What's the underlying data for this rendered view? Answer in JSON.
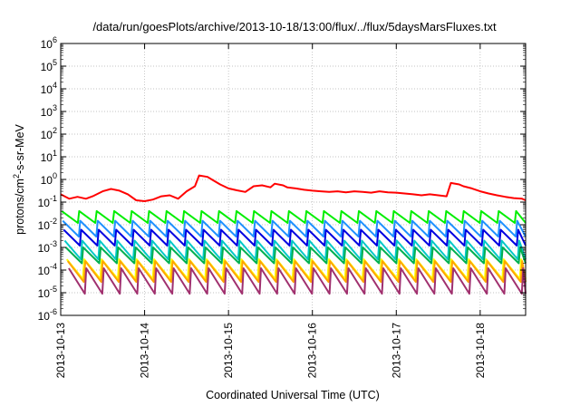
{
  "chart_data": {
    "type": "line",
    "title": "/data/run/goesPlots/archive/2013-10-18/13:00/flux/../flux/5daysMarsFluxes.txt",
    "xlabel": "Coordinated Universal Time (UTC)",
    "ylabel": {
      "pre": "protons/cm",
      "sup": "2",
      "post": "-s-sr-MeV"
    },
    "y_scale": "log",
    "ylim_exponents": [
      -6,
      6
    ],
    "y_tick_base": "10",
    "y_tick_exponents": [
      "-6",
      "-5",
      "-4",
      "-3",
      "-2",
      "-1",
      "0",
      "1",
      "2",
      "3",
      "4",
      "5",
      "6"
    ],
    "x_ticks": [
      "2013-10-13",
      "2013-10-14",
      "2013-10-15",
      "2013-10-16",
      "2013-10-17",
      "2013-10-18"
    ],
    "xlim": [
      "2013-10-13 00:00",
      "2013-10-18 13:00"
    ],
    "grid": true,
    "legend": "none",
    "series": [
      {
        "color": "#ff0000",
        "style": "smooth",
        "period_hours": 0,
        "x_days": [
          0,
          0.1,
          0.2,
          0.3,
          0.38,
          0.5,
          0.6,
          0.7,
          0.8,
          0.9,
          1.0,
          1.1,
          1.2,
          1.3,
          1.4,
          1.5,
          1.6,
          1.65,
          1.75,
          1.8,
          1.9,
          2.0,
          2.1,
          2.2,
          2.3,
          2.4,
          2.5,
          2.55,
          2.65,
          2.7,
          2.8,
          2.9,
          3.0,
          3.1,
          3.2,
          3.3,
          3.4,
          3.5,
          3.6,
          3.7,
          3.8,
          3.9,
          4.0,
          4.1,
          4.2,
          4.3,
          4.4,
          4.5,
          4.6,
          4.65,
          4.75,
          4.8,
          4.9,
          5.0,
          5.1,
          5.2,
          5.3,
          5.4,
          5.5,
          5.541
        ],
        "values": [
          0.22,
          0.14,
          0.17,
          0.14,
          0.18,
          0.3,
          0.38,
          0.32,
          0.22,
          0.12,
          0.11,
          0.13,
          0.18,
          0.2,
          0.14,
          0.3,
          0.5,
          1.5,
          1.3,
          1.0,
          0.6,
          0.4,
          0.33,
          0.28,
          0.5,
          0.55,
          0.45,
          0.65,
          0.55,
          0.45,
          0.4,
          0.35,
          0.32,
          0.3,
          0.28,
          0.3,
          0.27,
          0.3,
          0.28,
          0.26,
          0.3,
          0.27,
          0.26,
          0.24,
          0.22,
          0.2,
          0.22,
          0.2,
          0.18,
          0.7,
          0.6,
          0.5,
          0.4,
          0.3,
          0.24,
          0.2,
          0.17,
          0.15,
          0.14,
          0.12
        ]
      },
      {
        "color": "#00ee00",
        "style": "sawtooth",
        "period_hours": 5,
        "low": 0.012,
        "high": 0.04
      },
      {
        "color": "#1e90ff",
        "style": "sawtooth",
        "period_hours": 5,
        "low": 0.003,
        "high": 0.015
      },
      {
        "color": "#0000e0",
        "style": "sawtooth",
        "period_hours": 5,
        "low": 0.0012,
        "high": 0.006
      },
      {
        "color": "#00c8c8",
        "style": "sawtooth",
        "period_hours": 5,
        "low": 0.0003,
        "high": 0.002
      },
      {
        "color": "#00b050",
        "style": "sawtooth",
        "period_hours": 5,
        "low": 0.0002,
        "high": 0.001
      },
      {
        "color": "#ffff00",
        "style": "sawtooth",
        "period_hours": 5,
        "low": 4e-05,
        "high": 0.0003
      },
      {
        "color": "#ffa500",
        "style": "sawtooth",
        "period_hours": 5,
        "low": 3e-05,
        "high": 0.00025
      },
      {
        "color": "#a0306e",
        "style": "sawtooth",
        "period_hours": 5,
        "low": 9e-06,
        "high": 0.00012
      }
    ]
  }
}
